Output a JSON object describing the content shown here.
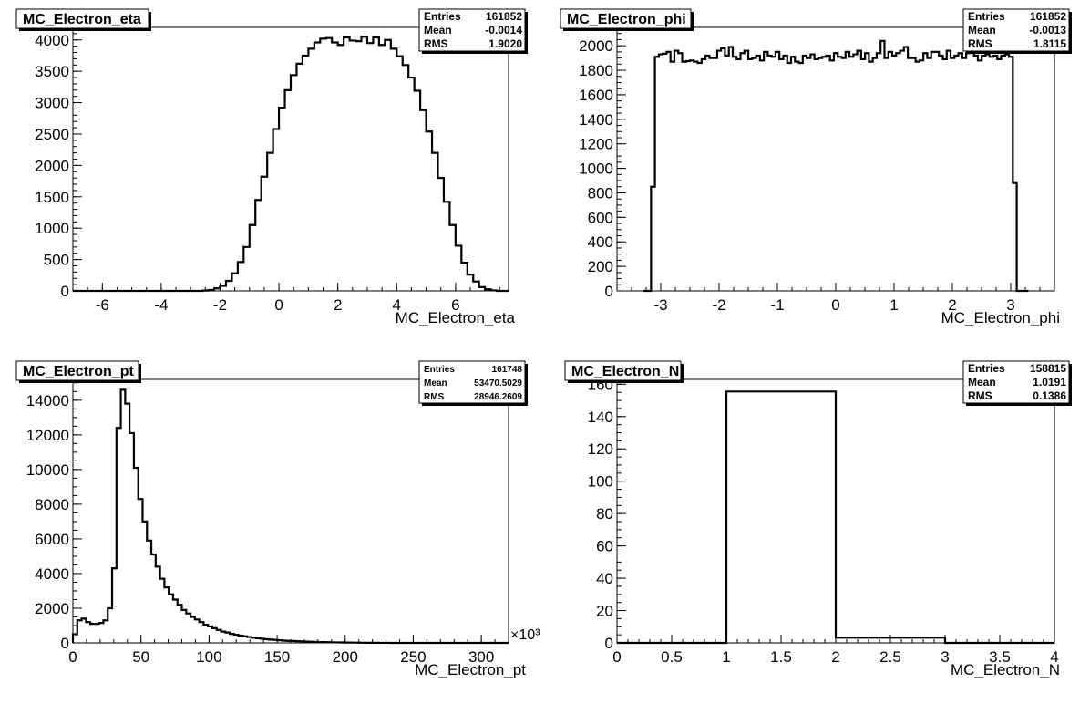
{
  "chart_data": [
    {
      "type": "bar",
      "title": "MC_Electron_eta",
      "xlabel": "MC_Electron_eta",
      "ylabel": "",
      "xlim": [
        -7.0,
        7.8
      ],
      "ylim": [
        0,
        4200
      ],
      "xticks": [
        -6,
        -4,
        -2,
        0,
        2,
        4,
        6
      ],
      "xtick_labels": [
        "-6",
        "-4",
        "-2",
        "0",
        "2",
        "4",
        "6"
      ],
      "yticks": [
        0,
        500,
        1000,
        1500,
        2000,
        2500,
        3000,
        3500,
        4000
      ],
      "ytick_labels": [
        "0",
        "500",
        "1000",
        "1500",
        "2000",
        "2500",
        "3000",
        "3500",
        "4000"
      ],
      "xminor": 0.5,
      "yminor": 100,
      "exponent": "",
      "bin_edges_start": -7.0,
      "bin_width": 0.2,
      "values": [
        0,
        0,
        0,
        0,
        0,
        0,
        0,
        0,
        0,
        0,
        0,
        0,
        0,
        0,
        0,
        0,
        0,
        0,
        0,
        0,
        0,
        0,
        5,
        15,
        40,
        80,
        160,
        280,
        460,
        700,
        1050,
        1450,
        1820,
        2200,
        2580,
        2920,
        3200,
        3440,
        3620,
        3750,
        3860,
        3960,
        4020,
        4030,
        3960,
        3920,
        4040,
        3990,
        3980,
        4050,
        3950,
        4040,
        3920,
        4000,
        3860,
        3740,
        3600,
        3400,
        3190,
        2880,
        2540,
        2200,
        1800,
        1420,
        1050,
        720,
        450,
        260,
        150,
        60,
        25,
        8,
        0,
        0,
        0,
        0,
        0,
        0,
        0,
        0,
        0,
        0,
        0,
        0,
        0,
        0,
        0,
        0,
        0,
        0,
        0,
        0,
        0,
        0,
        0,
        0,
        0,
        0,
        0,
        0
      ],
      "stats": {
        "entries": "161852",
        "mean": "-0.0014",
        "rms": "1.9020"
      }
    },
    {
      "type": "bar",
      "title": "MC_Electron_phi",
      "xlabel": "MC_Electron_phi",
      "ylabel": "",
      "xlim": [
        -3.75,
        3.75
      ],
      "ylim": [
        0,
        2150
      ],
      "xticks": [
        -3,
        -2,
        -1,
        0,
        1,
        2,
        3
      ],
      "xtick_labels": [
        "-3",
        "-2",
        "-1",
        "0",
        "1",
        "2",
        "3"
      ],
      "yticks": [
        0,
        200,
        400,
        600,
        800,
        1000,
        1200,
        1400,
        1600,
        1800,
        2000
      ],
      "ytick_labels": [
        "0",
        "200",
        "400",
        "600",
        "800",
        "1000",
        "1200",
        "1400",
        "1600",
        "1800",
        "2000"
      ],
      "xminor": 0.25,
      "yminor": 50,
      "exponent": "",
      "bin_edges_start": -3.3,
      "bin_width": 0.0667,
      "values": [
        0,
        0,
        850,
        1910,
        1930,
        1935,
        1950,
        1870,
        1960,
        1940,
        1870,
        1875,
        1880,
        1870,
        1860,
        1890,
        1920,
        1900,
        1900,
        1960,
        1980,
        1920,
        1990,
        1910,
        1890,
        1940,
        1960,
        1890,
        1900,
        1920,
        1880,
        1950,
        1920,
        1910,
        1950,
        1890,
        1920,
        1860,
        1910,
        1870,
        1860,
        1920,
        1900,
        1930,
        1890,
        1900,
        1910,
        1920,
        1880,
        1940,
        1910,
        1900,
        1950,
        1910,
        1930,
        1960,
        1890,
        1940,
        1870,
        1900,
        1940,
        2040,
        1900,
        1950,
        1920,
        1940,
        1960,
        1990,
        1900,
        1900,
        1870,
        1880,
        1940,
        1900,
        1950,
        1950,
        1920,
        1890,
        1960,
        1900,
        1920,
        1940,
        1900,
        1940,
        1950,
        1920,
        1880,
        1920,
        1930,
        1910,
        1920,
        1890,
        1920,
        1930,
        1910,
        880,
        0,
        0,
        0
      ],
      "stats": {
        "entries": "161852",
        "mean": "-0.0013",
        "rms": "1.8115"
      }
    },
    {
      "type": "bar",
      "title": "MC_Electron_pt",
      "xlabel": "MC_Electron_pt",
      "ylabel": "",
      "xlim": [
        0,
        320
      ],
      "ylim": [
        0,
        15200
      ],
      "xticks": [
        0,
        50,
        100,
        150,
        200,
        250,
        300
      ],
      "xtick_labels": [
        "0",
        "50",
        "100",
        "150",
        "200",
        "250",
        "300"
      ],
      "yticks": [
        0,
        2000,
        4000,
        6000,
        8000,
        10000,
        12000,
        14000
      ],
      "ytick_labels": [
        "0",
        "2000",
        "4000",
        "6000",
        "8000",
        "10000",
        "12000",
        "14000"
      ],
      "xminor": 10,
      "yminor": 500,
      "exponent": "×10³",
      "bin_edges_start": 0,
      "bin_width": 3.2,
      "values": [
        500,
        1300,
        1400,
        1200,
        1100,
        1100,
        1150,
        1300,
        2000,
        4300,
        12400,
        14600,
        13800,
        12100,
        10100,
        8300,
        7000,
        5900,
        5100,
        4400,
        3700,
        3200,
        2800,
        2500,
        2200,
        1900,
        1700,
        1500,
        1350,
        1200,
        1050,
        950,
        850,
        750,
        650,
        600,
        520,
        470,
        420,
        380,
        340,
        300,
        270,
        240,
        210,
        190,
        170,
        150,
        130,
        120,
        110,
        100,
        90,
        80,
        70,
        60,
        50,
        45,
        40,
        35,
        30,
        25,
        20,
        18,
        15,
        12,
        10,
        8,
        6,
        5,
        4,
        3,
        2,
        1,
        0,
        0,
        0,
        0,
        0,
        0,
        0,
        0,
        0,
        0,
        0,
        0,
        0,
        0,
        0,
        0,
        0,
        0,
        0,
        0,
        0,
        0,
        0,
        0,
        0,
        0
      ],
      "stats": {
        "entries": "161748",
        "mean": "53470.5029",
        "rms": "28946.2609"
      }
    },
    {
      "type": "bar",
      "title": "MC_Electron_N",
      "xlabel": "MC_Electron_N",
      "ylabel": "",
      "xlim": [
        0,
        4
      ],
      "ylim": [
        0,
        163
      ],
      "xticks": [
        0,
        0.5,
        1,
        1.5,
        2,
        2.5,
        3,
        3.5,
        4
      ],
      "xtick_labels": [
        "0",
        "0.5",
        "1",
        "1.5",
        "2",
        "2.5",
        "3",
        "3.5",
        "4"
      ],
      "yticks": [
        0,
        20,
        40,
        60,
        80,
        100,
        120,
        140,
        160
      ],
      "ytick_labels": [
        "0",
        "20",
        "40",
        "60",
        "80",
        "100",
        "120",
        "140",
        "160"
      ],
      "xminor": 0.1,
      "yminor": 5,
      "exponent": "",
      "bin_edges_start": 0,
      "bin_width": 1,
      "values": [
        0,
        155.5,
        3.2,
        0
      ],
      "stats": {
        "entries": "158815",
        "mean": "1.0191",
        "rms": "0.1386"
      }
    }
  ],
  "stats_labels": {
    "entries": "Entries",
    "mean": "Mean",
    "rms": "RMS"
  }
}
